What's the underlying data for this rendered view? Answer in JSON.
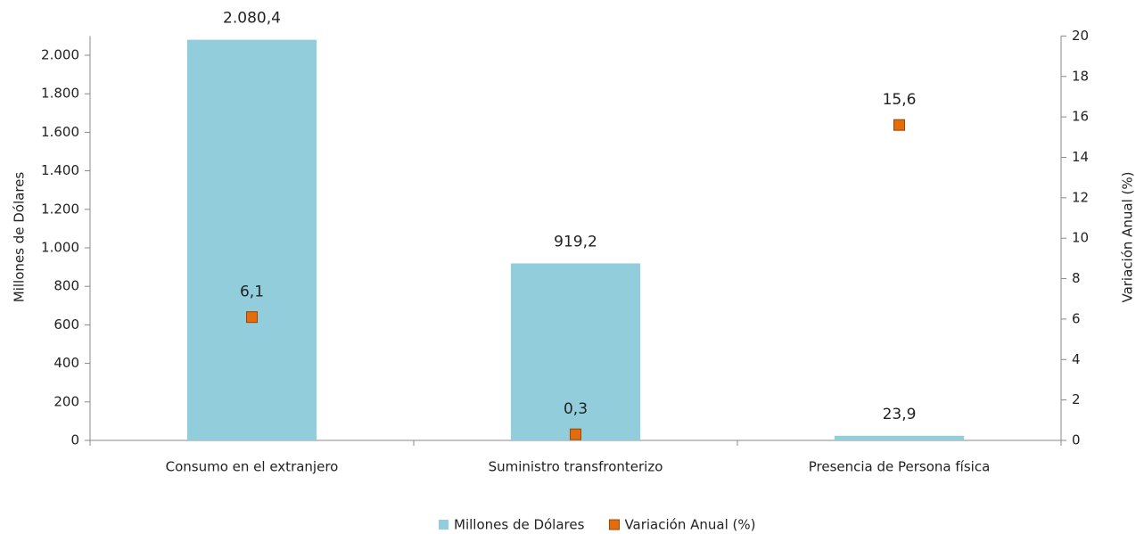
{
  "chart_data": {
    "type": "bar",
    "categories": [
      "Consumo en el extranjero",
      "Suministro transfronterizo",
      "Presencia de Persona física"
    ],
    "series": [
      {
        "name": "Millones de Dólares",
        "type": "bar",
        "color": "#92cddc",
        "values": [
          2080.4,
          919.2,
          23.9
        ],
        "value_labels": [
          "2.080,4",
          "919,2",
          "23,9"
        ]
      },
      {
        "name": "Variación Anual (%)",
        "type": "scatter",
        "axis": "y2",
        "color": "#e46c0a",
        "values": [
          6.1,
          0.3,
          15.6
        ],
        "value_labels": [
          "6,1",
          "0,3",
          "15,6"
        ]
      }
    ],
    "ylabel": "Millones de Dólares",
    "y2label": "Variación Anual (%)",
    "ylim": [
      0,
      2100
    ],
    "yticks": [
      0,
      200,
      400,
      600,
      800,
      {
        "value": 1000,
        "label": "1.000"
      },
      {
        "value": 1200,
        "label": "1.200"
      },
      {
        "value": 1400,
        "label": "1.400"
      },
      {
        "value": 1600,
        "label": "1.600"
      },
      {
        "value": 1800,
        "label": "1.800"
      },
      {
        "value": 2000,
        "label": "2.000"
      }
    ],
    "y2lim": [
      0,
      20
    ],
    "y2ticks": [
      0,
      2,
      4,
      6,
      8,
      10,
      12,
      14,
      16,
      18,
      20
    ],
    "legend": "bottom"
  }
}
